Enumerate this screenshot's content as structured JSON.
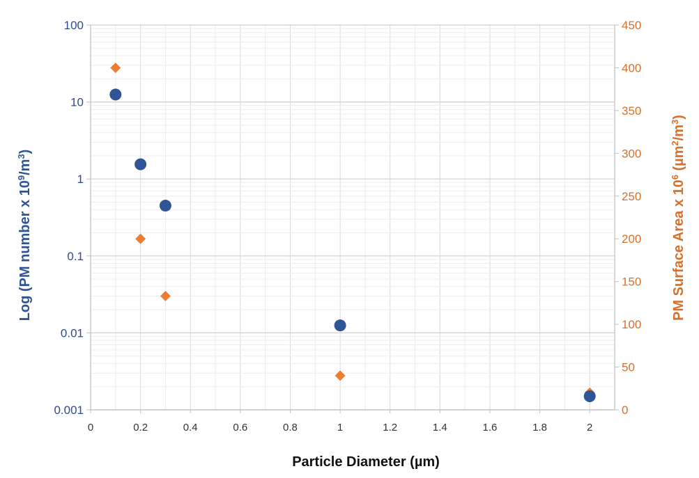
{
  "chart_data": {
    "type": "scatter",
    "title": "",
    "xlabel": "Particle Diameter (µm)",
    "ylabel_left": {
      "prefix": "Log (PM number x 10",
      "sup1": "9",
      "mid": "/m",
      "sup2": "3",
      "suffix": ")"
    },
    "ylabel_right": {
      "prefix": "PM Surface Area x 10",
      "sup1": "6",
      "mid": " (µm",
      "sup2": "2",
      "mid2": "/m",
      "sup3": "3",
      "suffix": ")"
    },
    "xlim": [
      0,
      2.1
    ],
    "x_ticks": [
      0,
      0.2,
      0.4,
      0.6,
      0.8,
      1,
      1.2,
      1.4,
      1.6,
      1.8,
      2
    ],
    "x_tick_labels": [
      "0",
      "0.2",
      "0.4",
      "0.6",
      "0.8",
      "1",
      "1.2",
      "1.4",
      "1.6",
      "1.8",
      "2"
    ],
    "y_left": {
      "scale": "log",
      "lim": [
        0.001,
        100
      ],
      "ticks": [
        0.001,
        0.01,
        0.1,
        1,
        10,
        100
      ],
      "tick_labels": [
        "0.001",
        "0.01",
        "0.1",
        "1",
        "10",
        "100"
      ]
    },
    "y_right": {
      "scale": "linear",
      "lim": [
        0,
        450
      ],
      "ticks": [
        0,
        50,
        100,
        150,
        200,
        250,
        300,
        350,
        400,
        450
      ],
      "tick_labels": [
        "0",
        "50",
        "100",
        "150",
        "200",
        "250",
        "300",
        "350",
        "400",
        "450"
      ]
    },
    "grid": true,
    "series": [
      {
        "axis": "left",
        "marker": "circle",
        "color": "#2f5597",
        "x": [
          0.1,
          0.2,
          0.3,
          1,
          2
        ],
        "y": [
          12.5,
          1.55,
          0.45,
          0.0125,
          0.0015
        ]
      },
      {
        "axis": "right",
        "marker": "diamond",
        "color": "#ed7d31",
        "x": [
          0.1,
          0.2,
          0.3,
          1,
          2
        ],
        "y": [
          400,
          200,
          133,
          40,
          20
        ]
      }
    ]
  }
}
